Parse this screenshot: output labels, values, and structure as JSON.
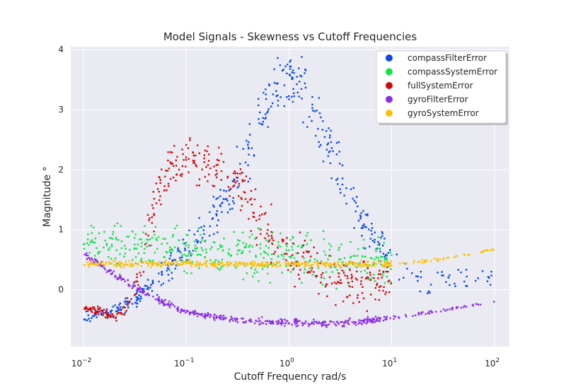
{
  "chart_data": {
    "type": "scatter",
    "title": "Model Signals - Skewness vs Cutoff Frequencies",
    "xlabel": "Cutoff Frequency rad/s",
    "ylabel": "Magnitude °",
    "xscale": "log",
    "xlim": [
      0.0075,
      140
    ],
    "ylim": [
      -0.95,
      4.05
    ],
    "x_ticks": [
      {
        "value": 0.01,
        "base": "10",
        "exp": "−2"
      },
      {
        "value": 0.1,
        "base": "10",
        "exp": "−1"
      },
      {
        "value": 1,
        "base": "10",
        "exp": "0"
      },
      {
        "value": 10,
        "base": "10",
        "exp": "1"
      },
      {
        "value": 100,
        "base": "10",
        "exp": "2"
      }
    ],
    "y_ticks": [
      0,
      1,
      2,
      3,
      4
    ],
    "y_tick_labels": [
      "0",
      "1",
      "2",
      "3",
      "4"
    ],
    "grid": true,
    "legend_position": "top-right",
    "series": [
      {
        "name": "compassFilterError",
        "color": "#0a48e8",
        "x_range": [
          0.01,
          100
        ],
        "points": [
          [
            0.01,
            -0.45
          ],
          [
            0.02,
            -0.35
          ],
          [
            0.03,
            -0.2
          ],
          [
            0.05,
            0.1
          ],
          [
            0.08,
            0.5
          ],
          [
            0.15,
            1.0
          ],
          [
            0.3,
            1.8
          ],
          [
            0.5,
            2.8
          ],
          [
            0.8,
            3.4
          ],
          [
            1.0,
            3.6
          ],
          [
            1.2,
            3.5
          ],
          [
            2.0,
            2.8
          ],
          [
            3.0,
            2.0
          ],
          [
            5.0,
            1.2
          ],
          [
            10,
            0.4
          ],
          [
            20,
            0.1
          ],
          [
            40,
            0.2
          ],
          [
            100,
            0.2
          ]
        ],
        "spread": [
          0.08,
          0.08,
          0.1,
          0.15,
          0.2,
          0.25,
          0.35,
          0.4,
          0.4,
          0.35,
          0.4,
          0.35,
          0.35,
          0.3,
          0.25,
          0.2,
          0.15,
          0.15
        ]
      },
      {
        "name": "compassSystemError",
        "color": "#12e24a",
        "x_range": [
          0.01,
          10
        ],
        "points": [
          [
            0.01,
            0.75
          ],
          [
            0.1,
            0.65
          ],
          [
            1.0,
            0.55
          ],
          [
            10,
            0.45
          ]
        ],
        "spread": [
          0.25,
          0.3,
          0.35,
          0.3
        ]
      },
      {
        "name": "fullSystemError",
        "color": "#d10a0a",
        "x_range": [
          0.01,
          10
        ],
        "points": [
          [
            0.01,
            -0.3
          ],
          [
            0.015,
            -0.38
          ],
          [
            0.02,
            -0.45
          ],
          [
            0.025,
            -0.35
          ],
          [
            0.035,
            0.3
          ],
          [
            0.05,
            1.5
          ],
          [
            0.07,
            2.1
          ],
          [
            0.1,
            2.15
          ],
          [
            0.15,
            2.1
          ],
          [
            0.2,
            2.0
          ],
          [
            0.3,
            1.8
          ],
          [
            0.5,
            1.2
          ],
          [
            1.0,
            0.6
          ],
          [
            2.0,
            0.25
          ],
          [
            5.0,
            0.1
          ],
          [
            10,
            0.1
          ]
        ],
        "spread": [
          0.05,
          0.05,
          0.06,
          0.1,
          0.3,
          0.3,
          0.3,
          0.3,
          0.35,
          0.35,
          0.35,
          0.35,
          0.3,
          0.3,
          0.3,
          0.3
        ]
      },
      {
        "name": "gyroFilterError",
        "color": "#8c2fe0",
        "x_range": [
          0.01,
          100
        ],
        "points": [
          [
            0.01,
            0.6
          ],
          [
            0.02,
            0.25
          ],
          [
            0.05,
            -0.15
          ],
          [
            0.1,
            -0.38
          ],
          [
            0.3,
            -0.5
          ],
          [
            1.0,
            -0.55
          ],
          [
            3.0,
            -0.57
          ],
          [
            10,
            -0.47
          ],
          [
            30,
            -0.35
          ],
          [
            100,
            -0.2
          ]
        ],
        "spread": [
          0.04,
          0.04,
          0.04,
          0.04,
          0.04,
          0.05,
          0.05,
          0.04,
          0.02,
          0.01
        ]
      },
      {
        "name": "gyroSystemError",
        "color": "#f7c20a",
        "x_range": [
          0.01,
          100
        ],
        "points": [
          [
            0.01,
            0.42
          ],
          [
            0.1,
            0.43
          ],
          [
            1.0,
            0.42
          ],
          [
            10,
            0.43
          ],
          [
            30,
            0.5
          ],
          [
            100,
            0.67
          ]
        ],
        "spread": [
          0.04,
          0.04,
          0.04,
          0.04,
          0.02,
          0.01
        ]
      }
    ]
  }
}
